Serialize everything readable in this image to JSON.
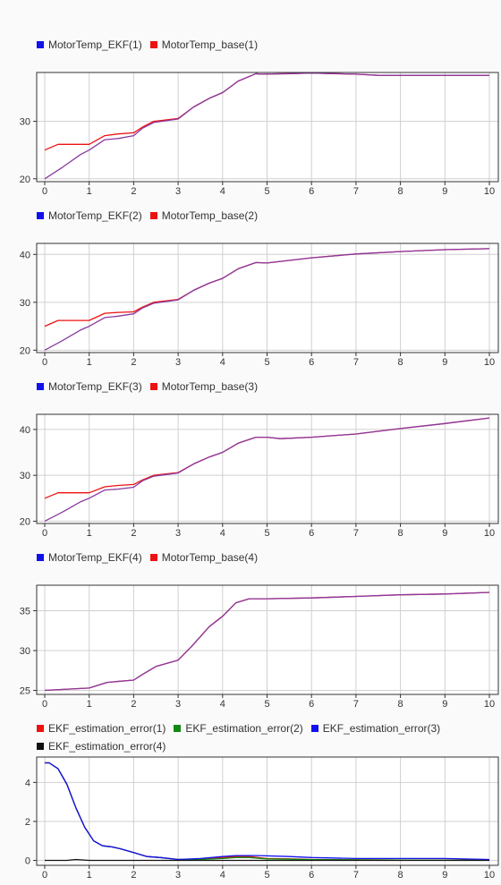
{
  "colors": {
    "red": "#ee1111",
    "green": "#118811",
    "blue": "#1111ee",
    "black": "#111111",
    "blend": "#8a3aa0",
    "grid": "#d0d0d0",
    "axis": "#333333"
  },
  "chart_data": [
    {
      "type": "line",
      "legend": [
        {
          "label": "MotorTemp_EKF(1)",
          "color": "#1111ee"
        },
        {
          "label": "MotorTemp_base(1)",
          "color": "#ee1111"
        }
      ],
      "xlim": [
        0,
        10
      ],
      "ylim": [
        19.5,
        38.5
      ],
      "xticks": [
        "0",
        "1",
        "2",
        "3",
        "4",
        "5",
        "6",
        "7",
        "8",
        "9",
        "10"
      ],
      "yticks": [
        20,
        30
      ],
      "series": [
        {
          "name": "MotorTemp_base(1)",
          "color": "#ee1111",
          "x": [
            0,
            0.3,
            1.0,
            1.35,
            1.65,
            2.0,
            2.2,
            2.45,
            3.0,
            3.35,
            3.7,
            4.0,
            4.35,
            4.75,
            4.85,
            5.5,
            6.0,
            6.5,
            7.0,
            7.5,
            8.0,
            9.0,
            10.0
          ],
          "y": [
            25,
            26,
            26,
            27.5,
            27.8,
            28,
            29,
            30,
            30.5,
            32.5,
            34,
            35,
            37,
            38.3,
            38.2,
            38.3,
            38.4,
            38.3,
            38.2,
            38,
            38,
            38,
            38
          ]
        },
        {
          "name": "MotorTemp_EKF(1)",
          "color": "#1111ee",
          "x": [
            0,
            0.4,
            0.8,
            1.0,
            1.35,
            1.65,
            2.0,
            2.2,
            2.45,
            3.0,
            3.35,
            3.7,
            4.0,
            4.35,
            4.75,
            4.85,
            5.5,
            6.0,
            6.5,
            7.0,
            7.5,
            8.0,
            9.0,
            10.0
          ],
          "y": [
            20,
            22,
            24.2,
            25,
            26.8,
            27,
            27.5,
            28.8,
            29.8,
            30.4,
            32.5,
            34,
            35,
            37,
            38.3,
            38.2,
            38.3,
            38.4,
            38.3,
            38.2,
            38,
            38,
            38,
            38
          ]
        }
      ]
    },
    {
      "type": "line",
      "legend": [
        {
          "label": "MotorTemp_EKF(2)",
          "color": "#1111ee"
        },
        {
          "label": "MotorTemp_base(2)",
          "color": "#ee1111"
        }
      ],
      "xlim": [
        0,
        10
      ],
      "ylim": [
        19.5,
        42.3
      ],
      "xticks": [
        "0",
        "1",
        "2",
        "3",
        "4",
        "5",
        "6",
        "7",
        "8",
        "9",
        "10"
      ],
      "yticks": [
        20,
        30,
        40
      ],
      "series": [
        {
          "name": "MotorTemp_base(2)",
          "color": "#ee1111",
          "x": [
            0,
            0.3,
            1.0,
            1.35,
            1.65,
            2.0,
            2.2,
            2.45,
            3.0,
            3.35,
            3.7,
            4.0,
            4.35,
            4.75,
            5.0,
            6.0,
            7.0,
            8.0,
            9.0,
            10.0
          ],
          "y": [
            25,
            26.2,
            26.2,
            27.7,
            27.9,
            28,
            29,
            30,
            30.6,
            32.5,
            34,
            35,
            37,
            38.3,
            38.2,
            39.3,
            40.1,
            40.6,
            41,
            41.2
          ]
        },
        {
          "name": "MotorTemp_EKF(2)",
          "color": "#1111ee",
          "x": [
            0,
            0.4,
            0.8,
            1.0,
            1.35,
            1.65,
            2.0,
            2.2,
            2.45,
            3.0,
            3.35,
            3.7,
            4.0,
            4.35,
            4.75,
            5.0,
            6.0,
            7.0,
            8.0,
            9.0,
            10.0
          ],
          "y": [
            20,
            22,
            24.2,
            25,
            26.8,
            27.1,
            27.6,
            28.8,
            29.8,
            30.5,
            32.5,
            34,
            35,
            37,
            38.3,
            38.2,
            39.3,
            40.1,
            40.6,
            41,
            41.2
          ]
        }
      ]
    },
    {
      "type": "line",
      "legend": [
        {
          "label": "MotorTemp_EKF(3)",
          "color": "#1111ee"
        },
        {
          "label": "MotorTemp_base(3)",
          "color": "#ee1111"
        }
      ],
      "xlim": [
        0,
        10
      ],
      "ylim": [
        19.5,
        43.3
      ],
      "xticks": [
        "0",
        "1",
        "2",
        "3",
        "4",
        "5",
        "6",
        "7",
        "8",
        "9",
        "10"
      ],
      "yticks": [
        20,
        30,
        40
      ],
      "series": [
        {
          "name": "MotorTemp_base(3)",
          "color": "#ee1111",
          "x": [
            0,
            0.3,
            1.0,
            1.35,
            1.65,
            2.0,
            2.2,
            2.45,
            3.0,
            3.35,
            3.7,
            4.0,
            4.35,
            4.75,
            5.0,
            5.3,
            6.0,
            7.0,
            8.0,
            9.0,
            10.0
          ],
          "y": [
            25,
            26.2,
            26.2,
            27.5,
            27.8,
            28,
            29,
            30,
            30.6,
            32.5,
            34,
            35,
            37,
            38.3,
            38.3,
            38,
            38.3,
            39,
            40.2,
            41.3,
            42.5
          ]
        },
        {
          "name": "MotorTemp_EKF(3)",
          "color": "#1111ee",
          "x": [
            0,
            0.4,
            0.8,
            1.0,
            1.35,
            1.65,
            2.0,
            2.2,
            2.45,
            3.0,
            3.35,
            3.7,
            4.0,
            4.35,
            4.75,
            5.0,
            5.3,
            6.0,
            7.0,
            8.0,
            9.0,
            10.0
          ],
          "y": [
            20,
            22,
            24.2,
            25,
            26.8,
            27,
            27.4,
            28.8,
            29.8,
            30.5,
            32.5,
            34,
            35,
            37,
            38.3,
            38.3,
            38,
            38.3,
            39,
            40.2,
            41.3,
            42.5
          ]
        }
      ]
    },
    {
      "type": "line",
      "legend": [
        {
          "label": "MotorTemp_EKF(4)",
          "color": "#1111ee"
        },
        {
          "label": "MotorTemp_base(4)",
          "color": "#ee1111"
        }
      ],
      "xlim": [
        0,
        10
      ],
      "ylim": [
        24.5,
        38.2
      ],
      "xticks": [
        "0",
        "1",
        "2",
        "3",
        "4",
        "5",
        "6",
        "7",
        "8",
        "9",
        "10"
      ],
      "yticks": [
        25,
        30,
        35
      ],
      "series": [
        {
          "name": "MotorTemp_base(4)",
          "color": "#ee1111",
          "x": [
            0,
            1.0,
            1.4,
            2.0,
            2.2,
            2.5,
            3.0,
            3.3,
            3.7,
            4.0,
            4.3,
            4.6,
            5.0,
            6.0,
            7.0,
            8.0,
            9.0,
            10.0
          ],
          "y": [
            25,
            25.3,
            26,
            26.3,
            27,
            28,
            28.8,
            30.5,
            33,
            34.3,
            36,
            36.5,
            36.5,
            36.6,
            36.8,
            37,
            37.1,
            37.3
          ]
        },
        {
          "name": "MotorTemp_EKF(4)",
          "color": "#1111ee",
          "x": [
            0,
            1.0,
            1.4,
            2.0,
            2.2,
            2.5,
            3.0,
            3.3,
            3.7,
            4.0,
            4.3,
            4.6,
            5.0,
            6.0,
            7.0,
            8.0,
            9.0,
            10.0
          ],
          "y": [
            25,
            25.3,
            26,
            26.3,
            27,
            28,
            28.8,
            30.5,
            33,
            34.3,
            36,
            36.5,
            36.5,
            36.6,
            36.8,
            37,
            37.1,
            37.3
          ]
        }
      ]
    },
    {
      "type": "line",
      "legend": [
        {
          "label": "EKF_estimation_error(1)",
          "color": "#ee1111"
        },
        {
          "label": "EKF_estimation_error(2)",
          "color": "#118811"
        },
        {
          "label": "EKF_estimation_error(3)",
          "color": "#1111ee"
        },
        {
          "label": "EKF_estimation_error(4)",
          "color": "#111111"
        }
      ],
      "xlim": [
        0,
        10
      ],
      "ylim": [
        -0.25,
        5.3
      ],
      "xticks": [
        "0",
        "1",
        "2",
        "3",
        "4",
        "5",
        "6",
        "7",
        "8",
        "9",
        "10"
      ],
      "yticks": [
        0,
        2,
        4
      ],
      "series": [
        {
          "name": "EKF_estimation_error(1)",
          "color": "#ee1111",
          "x": [
            0,
            0.1,
            0.3,
            0.5,
            0.7,
            0.9,
            1.1,
            1.3,
            1.5,
            1.7,
            2.0,
            2.3,
            2.6,
            3.0,
            3.5,
            4.0,
            4.3,
            4.6,
            5.0,
            5.5,
            6.0,
            7.0,
            8.0,
            9.0,
            10.0
          ],
          "y": [
            5,
            5,
            4.7,
            3.9,
            2.7,
            1.7,
            1.0,
            0.75,
            0.7,
            0.6,
            0.4,
            0.2,
            0.15,
            0.05,
            0.05,
            0.15,
            0.2,
            0.2,
            0.1,
            0.08,
            0.05,
            0.03,
            0.02,
            0.01,
            0.01
          ]
        },
        {
          "name": "EKF_estimation_error(2)",
          "color": "#118811",
          "x": [
            0,
            0.1,
            0.3,
            0.5,
            0.7,
            0.9,
            1.1,
            1.3,
            1.5,
            1.7,
            2.0,
            2.3,
            2.6,
            3.0,
            3.5,
            4.0,
            4.3,
            4.6,
            5.0,
            5.5,
            6.0,
            7.0,
            8.0,
            9.0,
            10.0
          ],
          "y": [
            5,
            5,
            4.7,
            3.9,
            2.7,
            1.7,
            1.0,
            0.75,
            0.7,
            0.6,
            0.4,
            0.2,
            0.15,
            0.05,
            0.05,
            0.1,
            0.15,
            0.15,
            0.08,
            0.06,
            0.04,
            0.03,
            0.02,
            0.01,
            0.01
          ]
        },
        {
          "name": "EKF_estimation_error(3)",
          "color": "#1111ee",
          "x": [
            0,
            0.1,
            0.3,
            0.5,
            0.7,
            0.9,
            1.1,
            1.3,
            1.5,
            1.7,
            2.0,
            2.3,
            2.6,
            3.0,
            3.5,
            4.0,
            4.3,
            4.6,
            4.8,
            5.5,
            6.0,
            7.0,
            8.0,
            9.0,
            10.0
          ],
          "y": [
            5,
            5,
            4.7,
            3.9,
            2.7,
            1.7,
            1.0,
            0.75,
            0.7,
            0.6,
            0.4,
            0.2,
            0.15,
            0.05,
            0.1,
            0.2,
            0.25,
            0.25,
            0.25,
            0.2,
            0.15,
            0.1,
            0.1,
            0.1,
            0.05
          ]
        },
        {
          "name": "EKF_estimation_error(4)",
          "color": "#111111",
          "x": [
            0,
            0.5,
            0.7,
            1.0,
            10.0
          ],
          "y": [
            0,
            0,
            0.05,
            0,
            0
          ]
        }
      ]
    }
  ]
}
